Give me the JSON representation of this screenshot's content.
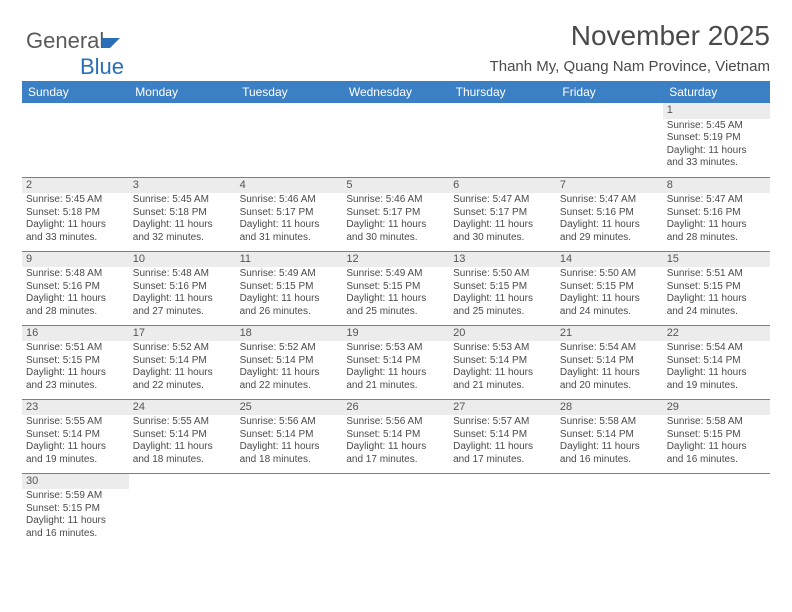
{
  "brand": {
    "name1": "General",
    "name2": "Blue"
  },
  "title": "November 2025",
  "location": "Thanh My, Quang Nam Province, Vietnam",
  "colors": {
    "header_bg": "#3b7fc4",
    "header_text": "#ffffff",
    "cell_border": "#4a8bc9",
    "daynum_bg": "#ececec",
    "text": "#4a4a4a",
    "brand_blue": "#2a6fb5"
  },
  "weekdays": [
    "Sunday",
    "Monday",
    "Tuesday",
    "Wednesday",
    "Thursday",
    "Friday",
    "Saturday"
  ],
  "layout": {
    "first_weekday_index": 6,
    "days_in_month": 30,
    "rows": 6,
    "cols": 7
  },
  "days": {
    "1": {
      "sunrise": "5:45 AM",
      "sunset": "5:19 PM",
      "daylight": "11 hours and 33 minutes."
    },
    "2": {
      "sunrise": "5:45 AM",
      "sunset": "5:18 PM",
      "daylight": "11 hours and 33 minutes."
    },
    "3": {
      "sunrise": "5:45 AM",
      "sunset": "5:18 PM",
      "daylight": "11 hours and 32 minutes."
    },
    "4": {
      "sunrise": "5:46 AM",
      "sunset": "5:17 PM",
      "daylight": "11 hours and 31 minutes."
    },
    "5": {
      "sunrise": "5:46 AM",
      "sunset": "5:17 PM",
      "daylight": "11 hours and 30 minutes."
    },
    "6": {
      "sunrise": "5:47 AM",
      "sunset": "5:17 PM",
      "daylight": "11 hours and 30 minutes."
    },
    "7": {
      "sunrise": "5:47 AM",
      "sunset": "5:16 PM",
      "daylight": "11 hours and 29 minutes."
    },
    "8": {
      "sunrise": "5:47 AM",
      "sunset": "5:16 PM",
      "daylight": "11 hours and 28 minutes."
    },
    "9": {
      "sunrise": "5:48 AM",
      "sunset": "5:16 PM",
      "daylight": "11 hours and 28 minutes."
    },
    "10": {
      "sunrise": "5:48 AM",
      "sunset": "5:16 PM",
      "daylight": "11 hours and 27 minutes."
    },
    "11": {
      "sunrise": "5:49 AM",
      "sunset": "5:15 PM",
      "daylight": "11 hours and 26 minutes."
    },
    "12": {
      "sunrise": "5:49 AM",
      "sunset": "5:15 PM",
      "daylight": "11 hours and 25 minutes."
    },
    "13": {
      "sunrise": "5:50 AM",
      "sunset": "5:15 PM",
      "daylight": "11 hours and 25 minutes."
    },
    "14": {
      "sunrise": "5:50 AM",
      "sunset": "5:15 PM",
      "daylight": "11 hours and 24 minutes."
    },
    "15": {
      "sunrise": "5:51 AM",
      "sunset": "5:15 PM",
      "daylight": "11 hours and 24 minutes."
    },
    "16": {
      "sunrise": "5:51 AM",
      "sunset": "5:15 PM",
      "daylight": "11 hours and 23 minutes."
    },
    "17": {
      "sunrise": "5:52 AM",
      "sunset": "5:14 PM",
      "daylight": "11 hours and 22 minutes."
    },
    "18": {
      "sunrise": "5:52 AM",
      "sunset": "5:14 PM",
      "daylight": "11 hours and 22 minutes."
    },
    "19": {
      "sunrise": "5:53 AM",
      "sunset": "5:14 PM",
      "daylight": "11 hours and 21 minutes."
    },
    "20": {
      "sunrise": "5:53 AM",
      "sunset": "5:14 PM",
      "daylight": "11 hours and 21 minutes."
    },
    "21": {
      "sunrise": "5:54 AM",
      "sunset": "5:14 PM",
      "daylight": "11 hours and 20 minutes."
    },
    "22": {
      "sunrise": "5:54 AM",
      "sunset": "5:14 PM",
      "daylight": "11 hours and 19 minutes."
    },
    "23": {
      "sunrise": "5:55 AM",
      "sunset": "5:14 PM",
      "daylight": "11 hours and 19 minutes."
    },
    "24": {
      "sunrise": "5:55 AM",
      "sunset": "5:14 PM",
      "daylight": "11 hours and 18 minutes."
    },
    "25": {
      "sunrise": "5:56 AM",
      "sunset": "5:14 PM",
      "daylight": "11 hours and 18 minutes."
    },
    "26": {
      "sunrise": "5:56 AM",
      "sunset": "5:14 PM",
      "daylight": "11 hours and 17 minutes."
    },
    "27": {
      "sunrise": "5:57 AM",
      "sunset": "5:14 PM",
      "daylight": "11 hours and 17 minutes."
    },
    "28": {
      "sunrise": "5:58 AM",
      "sunset": "5:14 PM",
      "daylight": "11 hours and 16 minutes."
    },
    "29": {
      "sunrise": "5:58 AM",
      "sunset": "5:15 PM",
      "daylight": "11 hours and 16 minutes."
    },
    "30": {
      "sunrise": "5:59 AM",
      "sunset": "5:15 PM",
      "daylight": "11 hours and 16 minutes."
    }
  },
  "labels": {
    "sunrise_prefix": "Sunrise: ",
    "sunset_prefix": "Sunset: ",
    "daylight_prefix": "Daylight: "
  }
}
